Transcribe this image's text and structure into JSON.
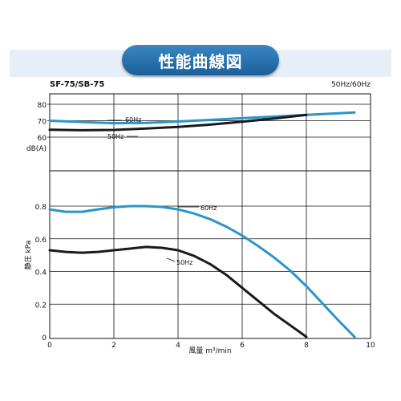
{
  "header": {
    "title": "性能曲線図",
    "model": "SF-75/SB-75",
    "freq_note": "50Hz/60Hz"
  },
  "colors": {
    "c60": "#2a95c9",
    "c50": "#1a1a1a",
    "band": "#e6eff7",
    "pill": "#2a74b2"
  },
  "chart_data": [
    {
      "type": "line",
      "name": "noise",
      "ylabel": "dB(A)",
      "xlim": [
        0,
        10
      ],
      "ylim": [
        60,
        80
      ],
      "yticks": [
        60,
        70,
        80
      ],
      "grid": true,
      "series": [
        {
          "name": "60Hz",
          "color": "#2a95c9",
          "x": [
            0,
            1,
            2,
            3,
            4,
            5,
            6,
            7,
            8,
            9,
            9.5
          ],
          "y": [
            70,
            69.2,
            68.5,
            68.7,
            69.5,
            70.5,
            71.5,
            72.5,
            73.5,
            74.5,
            75
          ]
        },
        {
          "name": "50Hz",
          "color": "#1a1a1a",
          "x": [
            0,
            1,
            2,
            3,
            4,
            5,
            6,
            7,
            8
          ],
          "y": [
            64.5,
            64.2,
            64.4,
            65.2,
            66.2,
            67.6,
            69.4,
            71.3,
            73.5
          ]
        }
      ],
      "labels": [
        {
          "text": "60Hz",
          "series": "60Hz"
        },
        {
          "text": "50Hz",
          "series": "50Hz"
        }
      ]
    },
    {
      "type": "line",
      "name": "pressure",
      "ylabel": "静圧 kPa",
      "xlabel": "風量 m³/min",
      "xlim": [
        0,
        10
      ],
      "ylim": [
        0,
        0.8
      ],
      "xticks": [
        0,
        2,
        4,
        6,
        8,
        10
      ],
      "xticklabels": [
        "0",
        "2",
        "4",
        "6",
        "8",
        "10"
      ],
      "yticks": [
        0,
        0.2,
        0.4,
        0.6,
        0.8
      ],
      "yticklabels": [
        "0",
        "0.2",
        "0.4",
        "0.6",
        "0.8"
      ],
      "grid": true,
      "series": [
        {
          "name": "60Hz",
          "color": "#2a95c9",
          "x": [
            0,
            0.5,
            1,
            1.5,
            2,
            2.5,
            3,
            3.5,
            4,
            4.5,
            5,
            5.5,
            6,
            6.5,
            7,
            7.5,
            8,
            8.5,
            9,
            9.5
          ],
          "y": [
            0.78,
            0.765,
            0.765,
            0.78,
            0.793,
            0.8,
            0.8,
            0.795,
            0.78,
            0.755,
            0.72,
            0.675,
            0.62,
            0.555,
            0.485,
            0.405,
            0.31,
            0.205,
            0.1,
            0
          ]
        },
        {
          "name": "50Hz",
          "color": "#1a1a1a",
          "x": [
            0,
            0.5,
            1,
            1.5,
            2,
            2.5,
            3,
            3.5,
            4,
            4.5,
            5,
            5.5,
            6,
            6.5,
            7,
            7.5,
            8
          ],
          "y": [
            0.53,
            0.52,
            0.515,
            0.52,
            0.53,
            0.54,
            0.55,
            0.545,
            0.53,
            0.495,
            0.445,
            0.38,
            0.3,
            0.22,
            0.14,
            0.07,
            0
          ]
        }
      ],
      "labels": [
        {
          "text": "60Hz",
          "series": "60Hz"
        },
        {
          "text": "50Hz",
          "series": "50Hz"
        }
      ]
    }
  ]
}
